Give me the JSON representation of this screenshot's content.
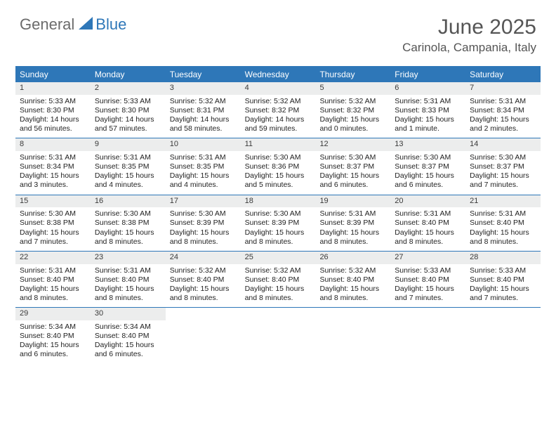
{
  "logo": {
    "text1": "General",
    "text2": "Blue"
  },
  "title": "June 2025",
  "location": "Carinola, Campania, Italy",
  "header_bg": "#2e77b8",
  "date_bg": "#eceded",
  "border_color": "#2e77b8",
  "weekdays": [
    "Sunday",
    "Monday",
    "Tuesday",
    "Wednesday",
    "Thursday",
    "Friday",
    "Saturday"
  ],
  "weeks": [
    [
      {
        "n": "1",
        "sr": "Sunrise: 5:33 AM",
        "ss": "Sunset: 8:30 PM",
        "d1": "Daylight: 14 hours",
        "d2": "and 56 minutes."
      },
      {
        "n": "2",
        "sr": "Sunrise: 5:33 AM",
        "ss": "Sunset: 8:30 PM",
        "d1": "Daylight: 14 hours",
        "d2": "and 57 minutes."
      },
      {
        "n": "3",
        "sr": "Sunrise: 5:32 AM",
        "ss": "Sunset: 8:31 PM",
        "d1": "Daylight: 14 hours",
        "d2": "and 58 minutes."
      },
      {
        "n": "4",
        "sr": "Sunrise: 5:32 AM",
        "ss": "Sunset: 8:32 PM",
        "d1": "Daylight: 14 hours",
        "d2": "and 59 minutes."
      },
      {
        "n": "5",
        "sr": "Sunrise: 5:32 AM",
        "ss": "Sunset: 8:32 PM",
        "d1": "Daylight: 15 hours",
        "d2": "and 0 minutes."
      },
      {
        "n": "6",
        "sr": "Sunrise: 5:31 AM",
        "ss": "Sunset: 8:33 PM",
        "d1": "Daylight: 15 hours",
        "d2": "and 1 minute."
      },
      {
        "n": "7",
        "sr": "Sunrise: 5:31 AM",
        "ss": "Sunset: 8:34 PM",
        "d1": "Daylight: 15 hours",
        "d2": "and 2 minutes."
      }
    ],
    [
      {
        "n": "8",
        "sr": "Sunrise: 5:31 AM",
        "ss": "Sunset: 8:34 PM",
        "d1": "Daylight: 15 hours",
        "d2": "and 3 minutes."
      },
      {
        "n": "9",
        "sr": "Sunrise: 5:31 AM",
        "ss": "Sunset: 8:35 PM",
        "d1": "Daylight: 15 hours",
        "d2": "and 4 minutes."
      },
      {
        "n": "10",
        "sr": "Sunrise: 5:31 AM",
        "ss": "Sunset: 8:35 PM",
        "d1": "Daylight: 15 hours",
        "d2": "and 4 minutes."
      },
      {
        "n": "11",
        "sr": "Sunrise: 5:30 AM",
        "ss": "Sunset: 8:36 PM",
        "d1": "Daylight: 15 hours",
        "d2": "and 5 minutes."
      },
      {
        "n": "12",
        "sr": "Sunrise: 5:30 AM",
        "ss": "Sunset: 8:37 PM",
        "d1": "Daylight: 15 hours",
        "d2": "and 6 minutes."
      },
      {
        "n": "13",
        "sr": "Sunrise: 5:30 AM",
        "ss": "Sunset: 8:37 PM",
        "d1": "Daylight: 15 hours",
        "d2": "and 6 minutes."
      },
      {
        "n": "14",
        "sr": "Sunrise: 5:30 AM",
        "ss": "Sunset: 8:37 PM",
        "d1": "Daylight: 15 hours",
        "d2": "and 7 minutes."
      }
    ],
    [
      {
        "n": "15",
        "sr": "Sunrise: 5:30 AM",
        "ss": "Sunset: 8:38 PM",
        "d1": "Daylight: 15 hours",
        "d2": "and 7 minutes."
      },
      {
        "n": "16",
        "sr": "Sunrise: 5:30 AM",
        "ss": "Sunset: 8:38 PM",
        "d1": "Daylight: 15 hours",
        "d2": "and 8 minutes."
      },
      {
        "n": "17",
        "sr": "Sunrise: 5:30 AM",
        "ss": "Sunset: 8:39 PM",
        "d1": "Daylight: 15 hours",
        "d2": "and 8 minutes."
      },
      {
        "n": "18",
        "sr": "Sunrise: 5:30 AM",
        "ss": "Sunset: 8:39 PM",
        "d1": "Daylight: 15 hours",
        "d2": "and 8 minutes."
      },
      {
        "n": "19",
        "sr": "Sunrise: 5:31 AM",
        "ss": "Sunset: 8:39 PM",
        "d1": "Daylight: 15 hours",
        "d2": "and 8 minutes."
      },
      {
        "n": "20",
        "sr": "Sunrise: 5:31 AM",
        "ss": "Sunset: 8:40 PM",
        "d1": "Daylight: 15 hours",
        "d2": "and 8 minutes."
      },
      {
        "n": "21",
        "sr": "Sunrise: 5:31 AM",
        "ss": "Sunset: 8:40 PM",
        "d1": "Daylight: 15 hours",
        "d2": "and 8 minutes."
      }
    ],
    [
      {
        "n": "22",
        "sr": "Sunrise: 5:31 AM",
        "ss": "Sunset: 8:40 PM",
        "d1": "Daylight: 15 hours",
        "d2": "and 8 minutes."
      },
      {
        "n": "23",
        "sr": "Sunrise: 5:31 AM",
        "ss": "Sunset: 8:40 PM",
        "d1": "Daylight: 15 hours",
        "d2": "and 8 minutes."
      },
      {
        "n": "24",
        "sr": "Sunrise: 5:32 AM",
        "ss": "Sunset: 8:40 PM",
        "d1": "Daylight: 15 hours",
        "d2": "and 8 minutes."
      },
      {
        "n": "25",
        "sr": "Sunrise: 5:32 AM",
        "ss": "Sunset: 8:40 PM",
        "d1": "Daylight: 15 hours",
        "d2": "and 8 minutes."
      },
      {
        "n": "26",
        "sr": "Sunrise: 5:32 AM",
        "ss": "Sunset: 8:40 PM",
        "d1": "Daylight: 15 hours",
        "d2": "and 8 minutes."
      },
      {
        "n": "27",
        "sr": "Sunrise: 5:33 AM",
        "ss": "Sunset: 8:40 PM",
        "d1": "Daylight: 15 hours",
        "d2": "and 7 minutes."
      },
      {
        "n": "28",
        "sr": "Sunrise: 5:33 AM",
        "ss": "Sunset: 8:40 PM",
        "d1": "Daylight: 15 hours",
        "d2": "and 7 minutes."
      }
    ],
    [
      {
        "n": "29",
        "sr": "Sunrise: 5:34 AM",
        "ss": "Sunset: 8:40 PM",
        "d1": "Daylight: 15 hours",
        "d2": "and 6 minutes."
      },
      {
        "n": "30",
        "sr": "Sunrise: 5:34 AM",
        "ss": "Sunset: 8:40 PM",
        "d1": "Daylight: 15 hours",
        "d2": "and 6 minutes."
      },
      null,
      null,
      null,
      null,
      null
    ]
  ]
}
